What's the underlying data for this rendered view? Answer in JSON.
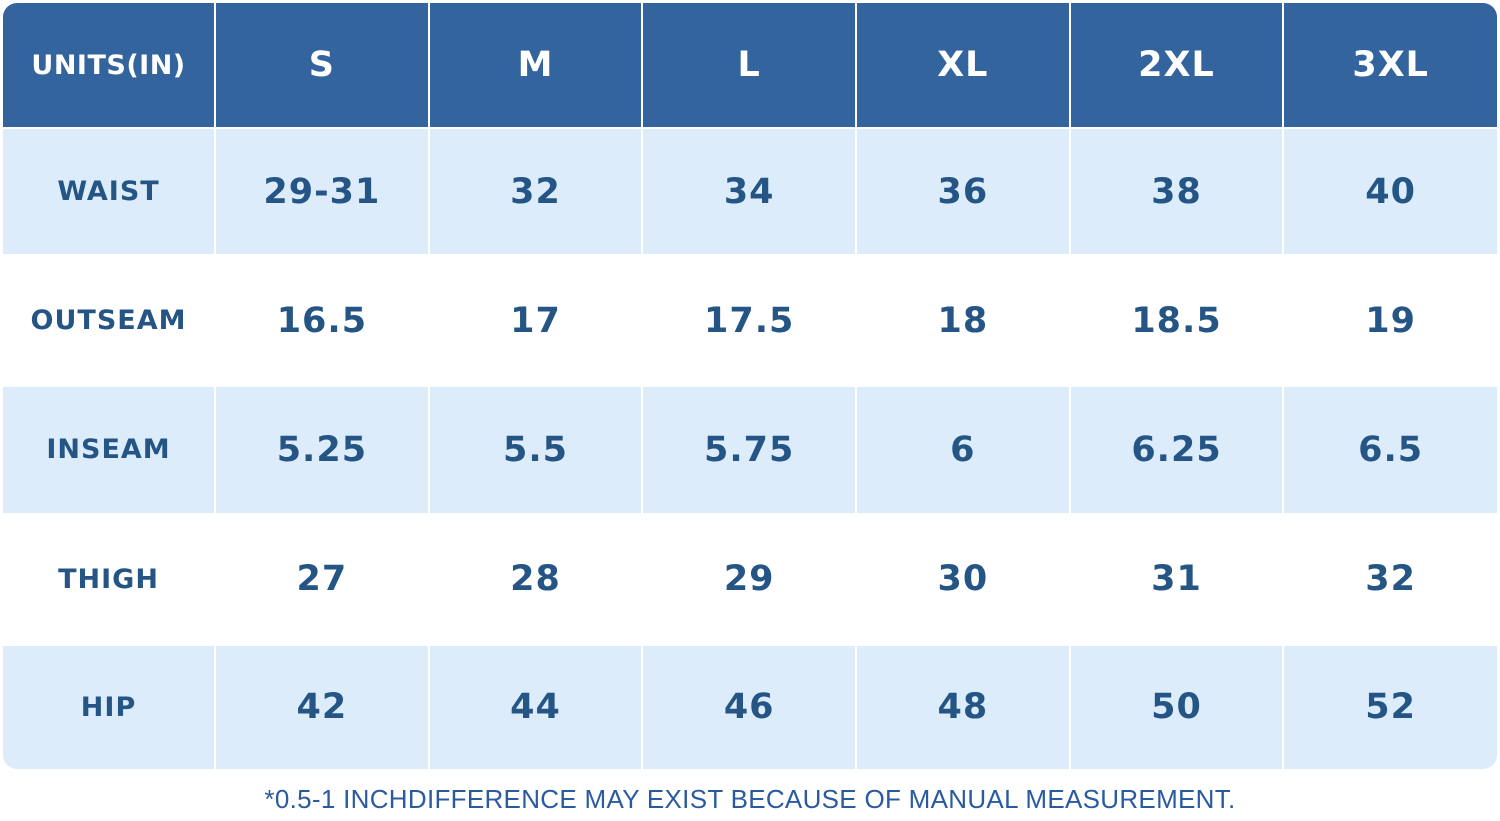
{
  "table": {
    "corner_label": "UNITS(IN)",
    "sizes": [
      "S",
      "M",
      "L",
      "XL",
      "2XL",
      "3XL"
    ],
    "rows": [
      {
        "label": "WAIST",
        "values": [
          "29-31",
          "32",
          "34",
          "36",
          "38",
          "40"
        ]
      },
      {
        "label": "OUTSEAM",
        "values": [
          "16.5",
          "17",
          "17.5",
          "18",
          "18.5",
          "19"
        ]
      },
      {
        "label": "INSEAM",
        "values": [
          "5.25",
          "5.5",
          "5.75",
          "6",
          "6.25",
          "6.5"
        ]
      },
      {
        "label": "THIGH",
        "values": [
          "27",
          "28",
          "29",
          "30",
          "31",
          "32"
        ]
      },
      {
        "label": "HIP",
        "values": [
          "42",
          "44",
          "46",
          "48",
          "50",
          "52"
        ]
      }
    ]
  },
  "footnote": "*0.5-1 INCHDIFFERENCE MAY EXIST BECAUSE OF MANUAL MEASUREMENT.",
  "colors": {
    "header_bg": "#33649e",
    "shaded_row_bg": "#dcecfa",
    "text_blue": "#245585"
  }
}
